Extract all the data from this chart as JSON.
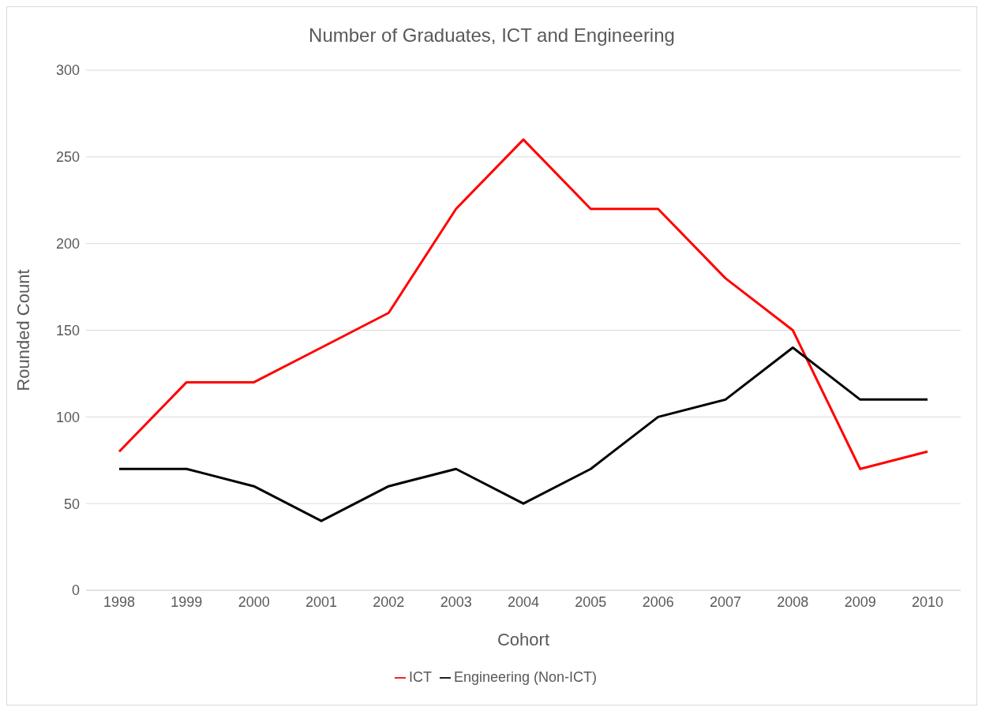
{
  "chart_data": {
    "type": "line",
    "title": "Number of Graduates, ICT and Engineering",
    "xlabel": "Cohort",
    "ylabel": "Rounded Count",
    "categories": [
      "1998",
      "1999",
      "2000",
      "2001",
      "2002",
      "2003",
      "2004",
      "2005",
      "2006",
      "2007",
      "2008",
      "2009",
      "2010"
    ],
    "series": [
      {
        "name": "ICT",
        "color": "#ff0000",
        "values": [
          80,
          120,
          120,
          140,
          160,
          220,
          260,
          220,
          220,
          180,
          150,
          70,
          80
        ]
      },
      {
        "name": "Engineering (Non-ICT)",
        "color": "#000000",
        "values": [
          70,
          70,
          60,
          40,
          60,
          70,
          50,
          70,
          100,
          110,
          140,
          110,
          110
        ]
      }
    ],
    "ylim": [
      0,
      300
    ],
    "yticks": [
      0,
      50,
      100,
      150,
      200,
      250,
      300
    ],
    "grid": "y",
    "legend": "bottom",
    "marker": "none",
    "line_style": "solid"
  }
}
